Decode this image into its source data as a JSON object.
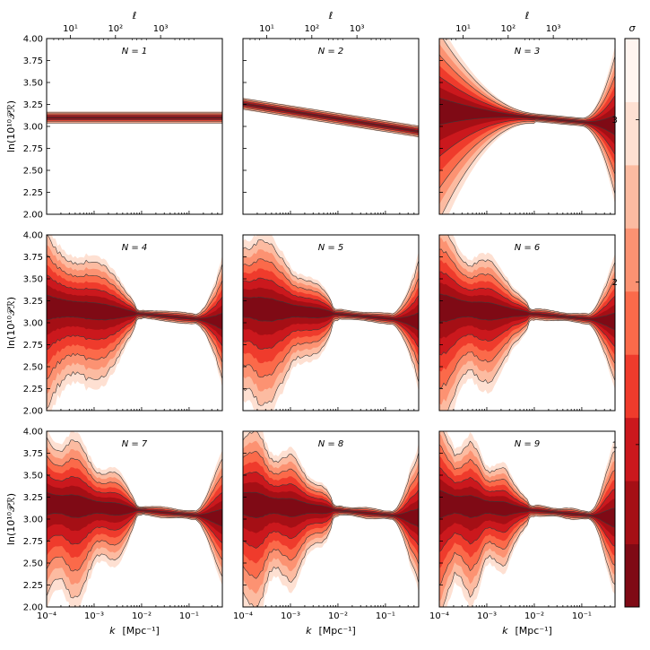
{
  "chart_data": {
    "type": "area",
    "panels": [
      {
        "label": "N = 1",
        "n": 1
      },
      {
        "label": "N = 2",
        "n": 2
      },
      {
        "label": "N = 3",
        "n": 3
      },
      {
        "label": "N = 4",
        "n": 4
      },
      {
        "label": "N = 5",
        "n": 5
      },
      {
        "label": "N = 6",
        "n": 6
      },
      {
        "label": "N = 7",
        "n": 7
      },
      {
        "label": "N = 8",
        "n": 8
      },
      {
        "label": "N = 9",
        "n": 9
      }
    ],
    "xlabel_var": "k",
    "xlabel_unit": "[Mpc⁻¹]",
    "top_axis_label": "ℓ",
    "ylabel": "ln(10¹⁰𝒫ℛ)",
    "colorbar_label": "σ",
    "xlim_log10": [
      -4,
      -0.3
    ],
    "x_tick_labels": [
      "10⁻⁴",
      "10⁻³",
      "10⁻²",
      "10⁻¹"
    ],
    "x_tick_values_log10": [
      -4,
      -3,
      -2,
      -1
    ],
    "top_tick_labels": [
      "10¹",
      "10²",
      "10³"
    ],
    "top_tick_values_log10_k": [
      -3.5,
      -2.55,
      -1.6
    ],
    "ylim": [
      2.0,
      4.0
    ],
    "y_ticks": [
      "2.00",
      "2.25",
      "2.50",
      "2.75",
      "3.00",
      "3.25",
      "3.50",
      "3.75",
      "4.00"
    ],
    "colorbar_ticks": [
      "1",
      "2",
      "3"
    ],
    "colorbar_colors": [
      "#7f0a15",
      "#a50f15",
      "#cb181d",
      "#ef3b2c",
      "#fb6a4a",
      "#fc9272",
      "#fcbba1",
      "#fee0d2",
      "#fff5f0"
    ],
    "band_colors": [
      "#fee0d2",
      "#fcbba1",
      "#fc9272",
      "#fb6a4a",
      "#ef3b2c",
      "#cb181d",
      "#a50f15",
      "#7f0a15"
    ],
    "median_ln_power": 3.1
  }
}
